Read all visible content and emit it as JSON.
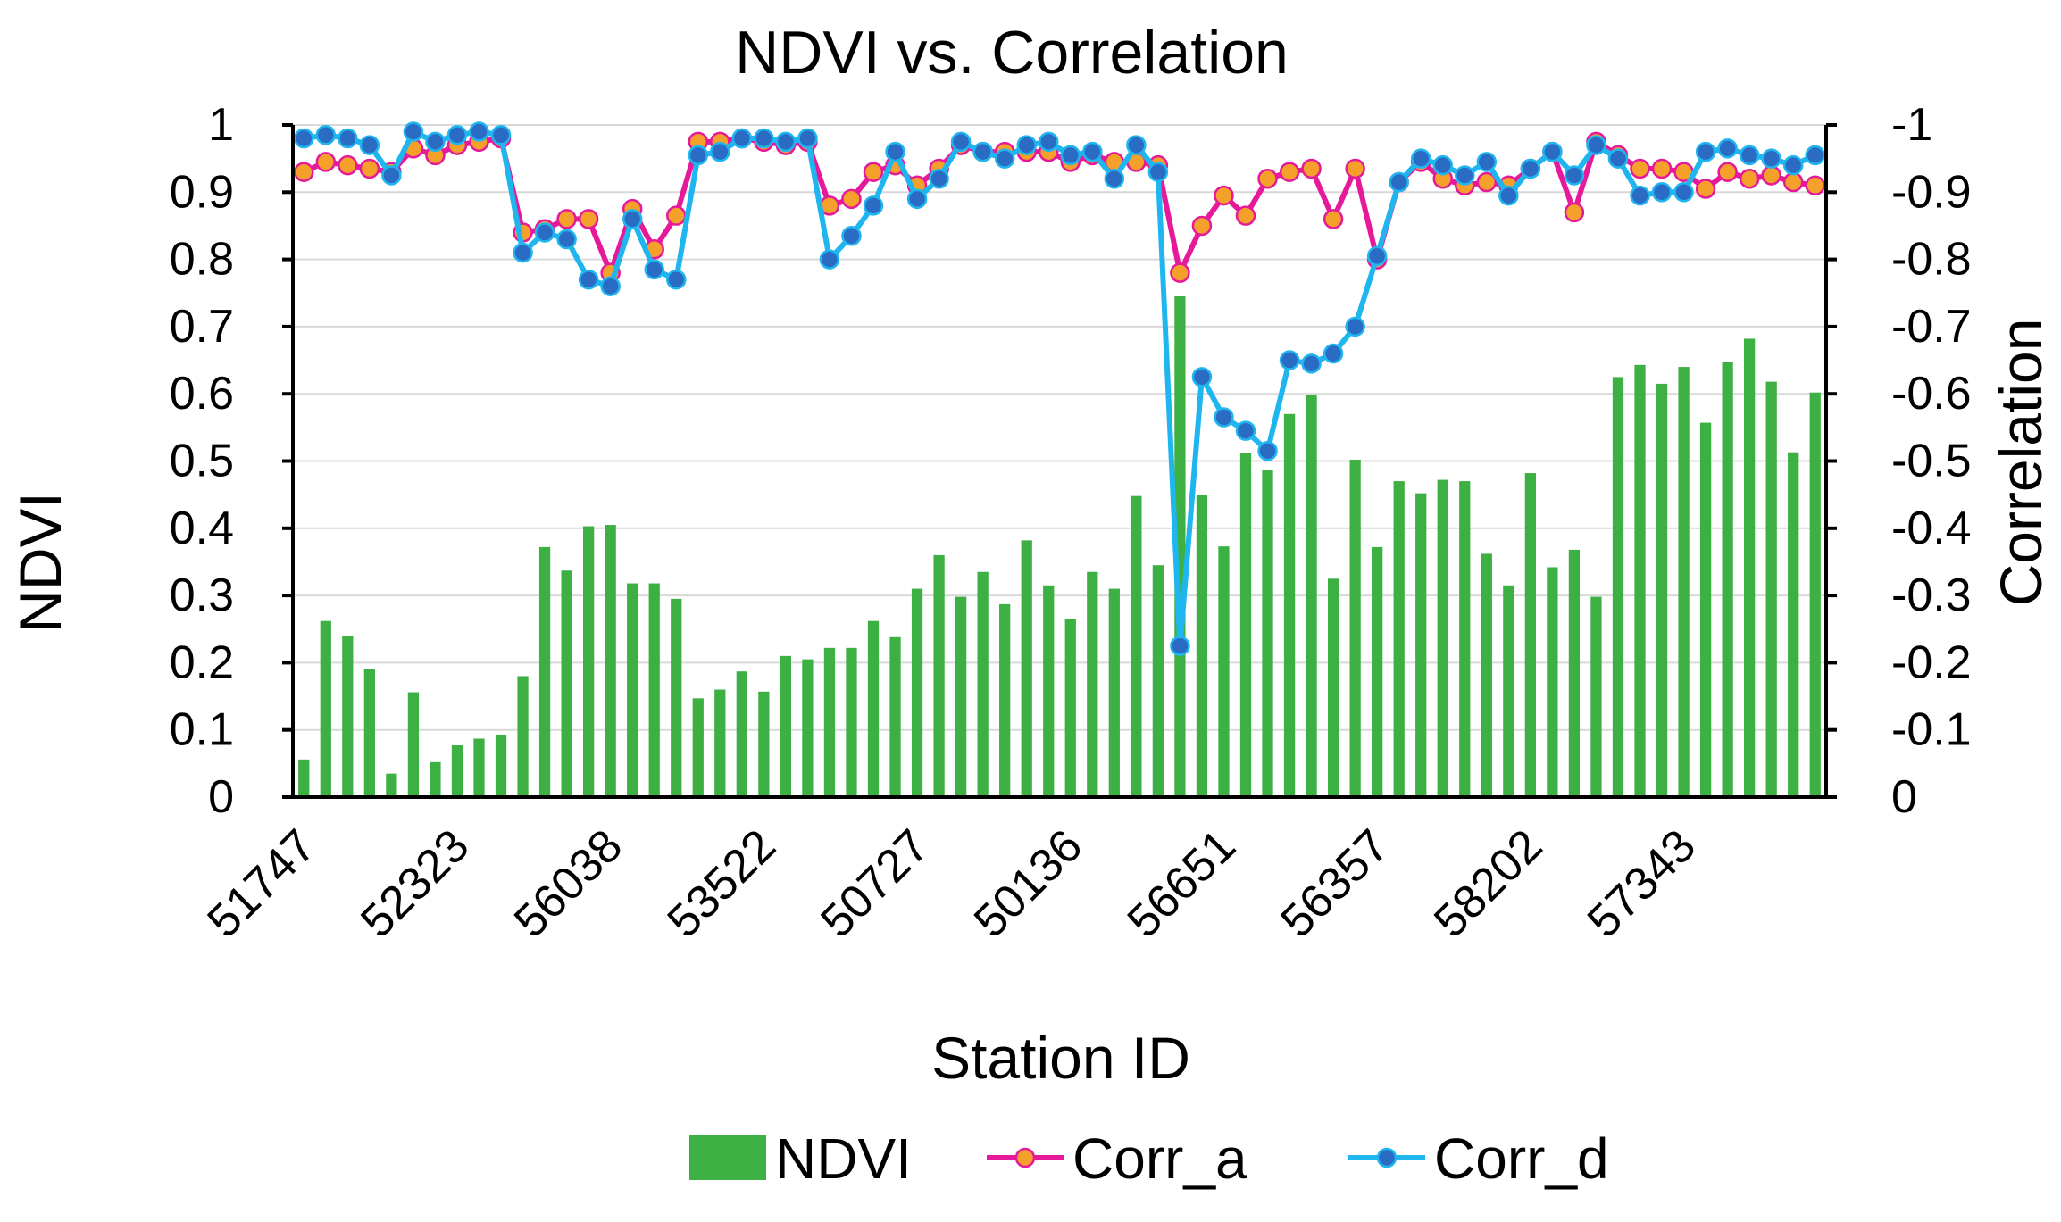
{
  "chart_data": {
    "type": "bar+line",
    "title": "NDVI vs. Correlation",
    "xlabel": "Station ID",
    "ylabel_left": "NDVI",
    "ylabel_right": "Correlation",
    "ylim_left": [
      0,
      1
    ],
    "ylim_right": [
      0,
      -1
    ],
    "yticks_left": [
      "0",
      "0.1",
      "0.2",
      "0.3",
      "0.4",
      "0.5",
      "0.6",
      "0.7",
      "0.8",
      "0.9",
      "1"
    ],
    "yticks_right": [
      "0",
      "-0.1",
      "-0.2",
      "-0.3",
      "-0.4",
      "-0.5",
      "-0.6",
      "-0.7",
      "-0.8",
      "-0.9",
      "-1"
    ],
    "xtick_labels": [
      {
        "index": 0,
        "label": "51747"
      },
      {
        "index": 7,
        "label": "52323"
      },
      {
        "index": 14,
        "label": "56038"
      },
      {
        "index": 21,
        "label": "53522"
      },
      {
        "index": 28,
        "label": "50727"
      },
      {
        "index": 35,
        "label": "50136"
      },
      {
        "index": 42,
        "label": "56651"
      },
      {
        "index": 49,
        "label": "56357"
      },
      {
        "index": 56,
        "label": "58202"
      },
      {
        "index": 63,
        "label": "57343"
      }
    ],
    "grid": true,
    "legend": {
      "position": "bottom",
      "entries": [
        "NDVI",
        "Corr_a",
        "Corr_d"
      ]
    },
    "colors": {
      "NDVI": "#3cb043",
      "Corr_a_line": "#e6199b",
      "Corr_a_marker": "#f4a02a",
      "Corr_d_line": "#1fb6f0",
      "Corr_d_marker": "#2a6cc4",
      "grid": "#d9d9d9",
      "axis": "#000000"
    },
    "series": [
      {
        "name": "NDVI",
        "axis": "left",
        "type": "bar",
        "values": [
          0.056,
          0.262,
          0.24,
          0.19,
          0.035,
          0.156,
          0.052,
          0.077,
          0.087,
          0.093,
          0.18,
          0.372,
          0.337,
          0.403,
          0.405,
          0.318,
          0.318,
          0.295,
          0.147,
          0.16,
          0.187,
          0.157,
          0.21,
          0.205,
          0.222,
          0.222,
          0.262,
          0.238,
          0.31,
          0.36,
          0.298,
          0.335,
          0.287,
          0.382,
          0.315,
          0.265,
          0.335,
          0.31,
          0.448,
          0.345,
          0.745,
          0.45,
          0.373,
          0.512,
          0.486,
          0.57,
          0.598,
          0.325,
          0.502,
          0.372,
          0.47,
          0.452,
          0.472,
          0.47,
          0.362,
          0.315,
          0.482,
          0.342,
          0.368,
          0.298,
          0.625,
          0.643,
          0.615,
          0.64,
          0.557,
          0.648,
          0.682,
          0.618,
          0.513,
          0.602
        ]
      },
      {
        "name": "Corr_a",
        "axis": "right",
        "type": "line",
        "values": [
          -0.93,
          -0.945,
          -0.94,
          -0.935,
          -0.93,
          -0.965,
          -0.955,
          -0.97,
          -0.975,
          -0.98,
          -0.84,
          -0.845,
          -0.86,
          -0.86,
          -0.78,
          -0.875,
          -0.815,
          -0.865,
          -0.975,
          -0.975,
          -0.98,
          -0.975,
          -0.97,
          -0.975,
          -0.88,
          -0.89,
          -0.93,
          -0.94,
          -0.91,
          -0.935,
          -0.97,
          -0.96,
          -0.96,
          -0.96,
          -0.96,
          -0.945,
          -0.955,
          -0.945,
          -0.945,
          -0.94,
          -0.78,
          -0.85,
          -0.895,
          -0.865,
          -0.92,
          -0.93,
          -0.935,
          -0.86,
          -0.935,
          -0.8,
          -0.915,
          -0.945,
          -0.92,
          -0.91,
          -0.915,
          -0.91,
          -0.935,
          -0.96,
          -0.87,
          -0.975,
          -0.955,
          -0.935,
          -0.935,
          -0.93,
          -0.905,
          -0.93,
          -0.92,
          -0.925,
          -0.915,
          -0.91
        ]
      },
      {
        "name": "Corr_d",
        "axis": "right",
        "type": "line",
        "values": [
          -0.98,
          -0.985,
          -0.98,
          -0.97,
          -0.925,
          -0.99,
          -0.975,
          -0.985,
          -0.99,
          -0.985,
          -0.81,
          -0.84,
          -0.83,
          -0.77,
          -0.76,
          -0.86,
          -0.785,
          -0.77,
          -0.955,
          -0.96,
          -0.98,
          -0.98,
          -0.975,
          -0.98,
          -0.8,
          -0.835,
          -0.88,
          -0.96,
          -0.89,
          -0.92,
          -0.975,
          -0.96,
          -0.95,
          -0.97,
          -0.975,
          -0.955,
          -0.96,
          -0.92,
          -0.97,
          -0.93,
          -0.225,
          -0.625,
          -0.565,
          -0.545,
          -0.515,
          -0.65,
          -0.645,
          -0.66,
          -0.7,
          -0.805,
          -0.915,
          -0.95,
          -0.94,
          -0.925,
          -0.945,
          -0.895,
          -0.935,
          -0.96,
          -0.925,
          -0.97,
          -0.95,
          -0.895,
          -0.9,
          -0.9,
          -0.96,
          -0.965,
          -0.955,
          -0.95,
          -0.94,
          -0.955
        ]
      }
    ]
  }
}
